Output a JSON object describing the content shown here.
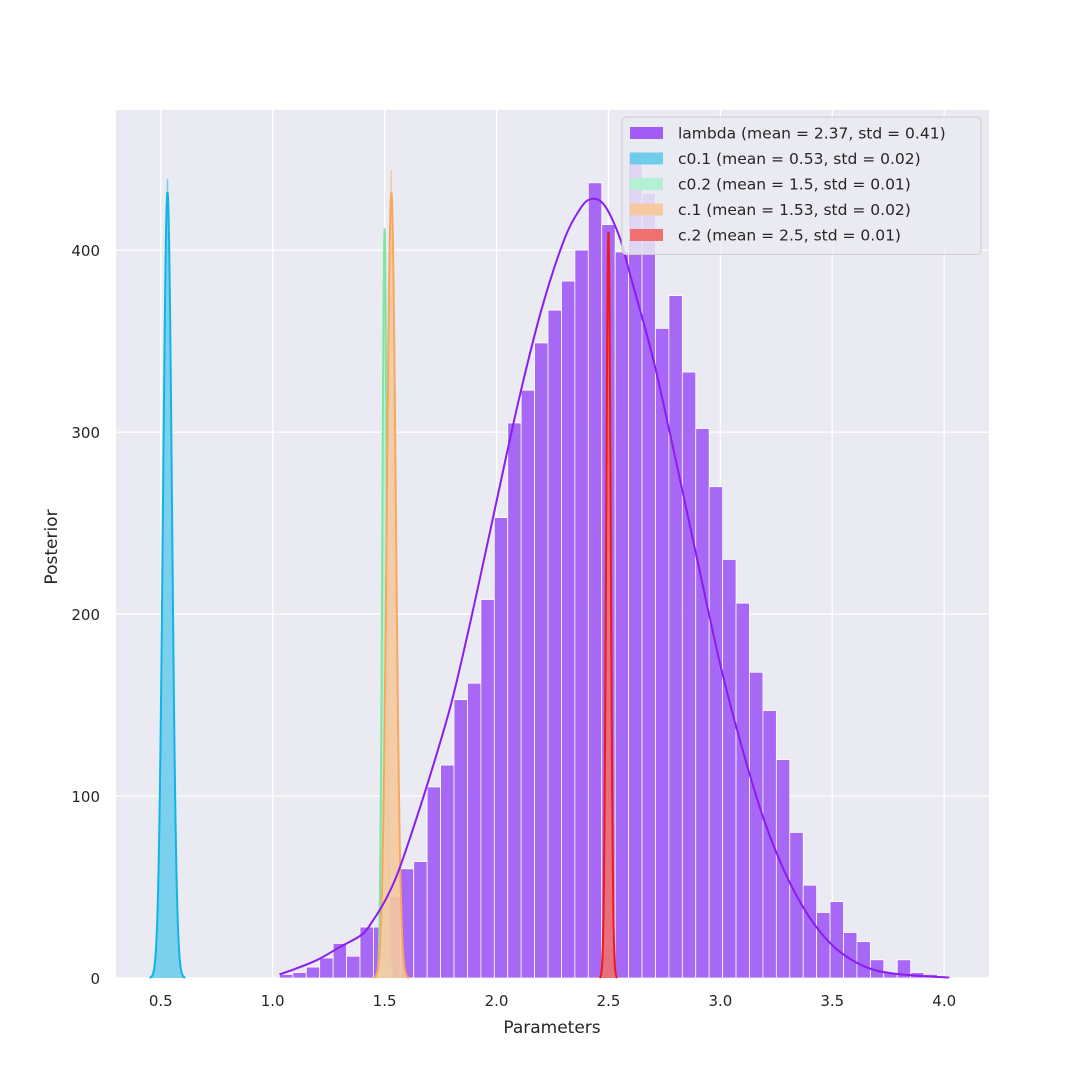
{
  "chart_data": {
    "type": "histogram",
    "title": "",
    "xlabel": "Parameters",
    "ylabel": "Posterior",
    "xlim": [
      0.3,
      4.2
    ],
    "ylim": [
      0,
      477
    ],
    "x_ticks": [
      0.5,
      1.0,
      1.5,
      2.0,
      2.5,
      3.0,
      3.5,
      4.0
    ],
    "x_tick_labels": [
      "0.5",
      "1.0",
      "1.5",
      "2.0",
      "2.5",
      "3.0",
      "3.5",
      "4.0"
    ],
    "y_ticks": [
      0,
      100,
      200,
      300,
      400
    ],
    "y_tick_labels": [
      "0",
      "100",
      "200",
      "300",
      "400"
    ],
    "grid": true,
    "legend_position": "top-right",
    "series": [
      {
        "name": "lambda (mean = 2.37, std = 0.41)",
        "color": "#a05cf5",
        "line_color": "#8a1ef0",
        "bin_width": 0.06,
        "bins": [
          [
            1.03,
            2
          ],
          [
            1.09,
            3
          ],
          [
            1.15,
            6
          ],
          [
            1.21,
            11
          ],
          [
            1.27,
            19
          ],
          [
            1.33,
            12
          ],
          [
            1.39,
            28
          ],
          [
            1.45,
            28
          ],
          [
            1.51,
            45
          ],
          [
            1.57,
            60
          ],
          [
            1.63,
            64
          ],
          [
            1.69,
            105
          ],
          [
            1.75,
            117
          ],
          [
            1.81,
            153
          ],
          [
            1.87,
            162
          ],
          [
            1.93,
            208
          ],
          [
            1.99,
            253
          ],
          [
            2.05,
            305
          ],
          [
            2.11,
            323
          ],
          [
            2.17,
            349
          ],
          [
            2.23,
            367
          ],
          [
            2.29,
            383
          ],
          [
            2.35,
            400
          ],
          [
            2.41,
            437
          ],
          [
            2.47,
            414
          ],
          [
            2.53,
            399
          ],
          [
            2.59,
            454
          ],
          [
            2.65,
            431
          ],
          [
            2.71,
            357
          ],
          [
            2.77,
            375
          ],
          [
            2.83,
            333
          ],
          [
            2.89,
            302
          ],
          [
            2.95,
            270
          ],
          [
            3.01,
            230
          ],
          [
            3.07,
            206
          ],
          [
            3.13,
            168
          ],
          [
            3.19,
            147
          ],
          [
            3.25,
            120
          ],
          [
            3.31,
            80
          ],
          [
            3.37,
            51
          ],
          [
            3.43,
            36
          ],
          [
            3.49,
            42
          ],
          [
            3.55,
            25
          ],
          [
            3.61,
            20
          ],
          [
            3.67,
            10
          ],
          [
            3.73,
            3
          ],
          [
            3.79,
            10
          ],
          [
            3.85,
            3
          ],
          [
            3.91,
            2
          ],
          [
            3.97,
            1
          ]
        ],
        "kde": [
          [
            1.03,
            2
          ],
          [
            1.1,
            5
          ],
          [
            1.2,
            10
          ],
          [
            1.3,
            17
          ],
          [
            1.4,
            24
          ],
          [
            1.45,
            32
          ],
          [
            1.5,
            42
          ],
          [
            1.55,
            55
          ],
          [
            1.6,
            72
          ],
          [
            1.7,
            110
          ],
          [
            1.8,
            152
          ],
          [
            1.9,
            205
          ],
          [
            2.0,
            262
          ],
          [
            2.1,
            318
          ],
          [
            2.2,
            367
          ],
          [
            2.3,
            405
          ],
          [
            2.37,
            422
          ],
          [
            2.42,
            428
          ],
          [
            2.48,
            425
          ],
          [
            2.55,
            407
          ],
          [
            2.6,
            385
          ],
          [
            2.7,
            340
          ],
          [
            2.8,
            285
          ],
          [
            2.9,
            228
          ],
          [
            3.0,
            172
          ],
          [
            3.1,
            125
          ],
          [
            3.2,
            85
          ],
          [
            3.3,
            55
          ],
          [
            3.4,
            33
          ],
          [
            3.5,
            18
          ],
          [
            3.6,
            9
          ],
          [
            3.7,
            4
          ],
          [
            3.85,
            1.5
          ],
          [
            4.02,
            0.3
          ]
        ]
      },
      {
        "name": "c0.1 (mean = 0.53, std = 0.02)",
        "color": "#6fcdec",
        "line_color": "#10b4e6",
        "mean": 0.53,
        "std": 0.02,
        "peak": 432,
        "spike": 439
      },
      {
        "name": "c0.2 (mean = 1.5, std = 0.01)",
        "color": "#b4f0d2",
        "line_color": "#7ee6a2",
        "mean": 1.5,
        "std": 0.01,
        "peak": 412
      },
      {
        "name": "c.1 (mean = 1.53, std = 0.02)",
        "color": "#f6c9a0",
        "line_color": "#f7a860",
        "mean": 1.53,
        "std": 0.02,
        "peak": 432,
        "spike": 444
      },
      {
        "name": "c.2 (mean = 2.5, std = 0.01)",
        "color": "#f07070",
        "line_color": "#f21818",
        "mean": 2.5,
        "std": 0.01,
        "peak": 410
      }
    ]
  }
}
